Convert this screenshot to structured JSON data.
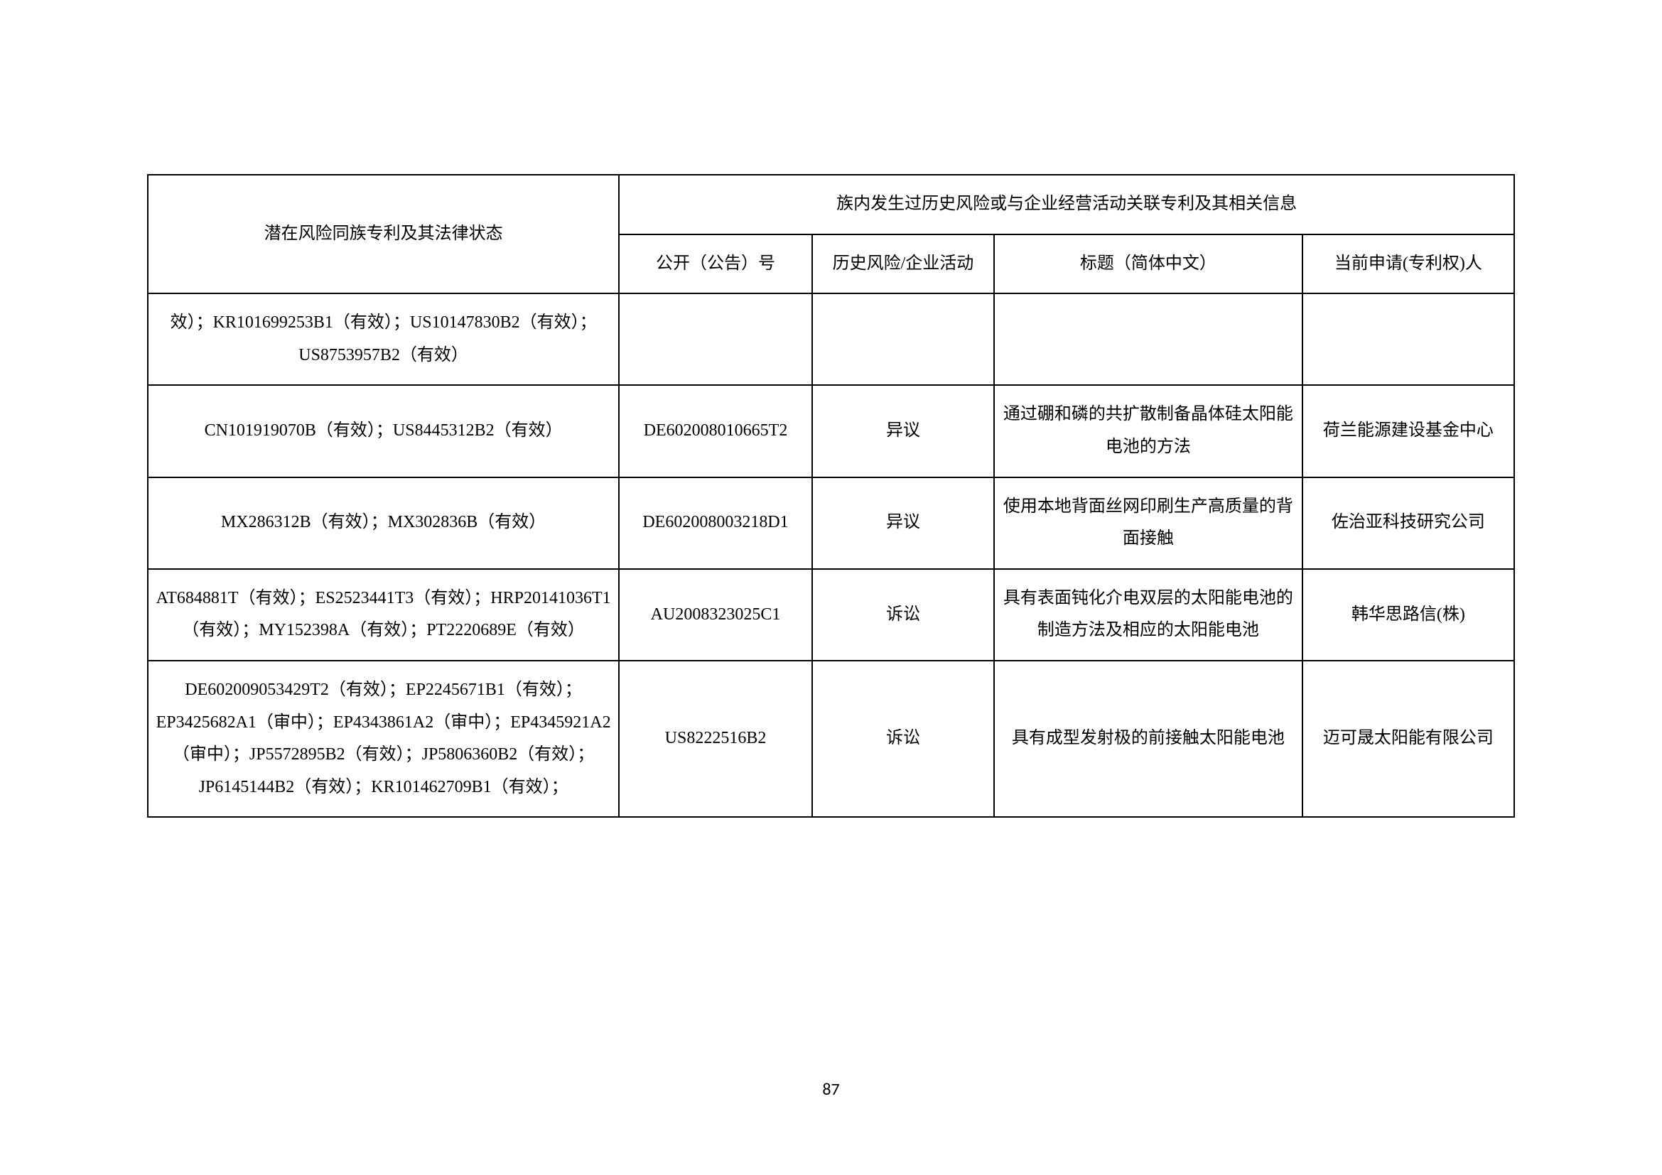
{
  "table": {
    "headers": {
      "col1": "潜在风险同族专利及其法律状态",
      "merged_top": "族内发生过历史风险或与企业经营活动关联专利及其相关信息",
      "col2": "公开（公告）号",
      "col3": "历史风险/企业活动",
      "col4": "标题（简体中文）",
      "col5": "当前申请(专利权)人"
    },
    "rows": [
      {
        "c1": "效）；KR101699253B1（有效）；US10147830B2（有效）；US8753957B2（有效）",
        "c2": "",
        "c3": "",
        "c4": "",
        "c5": ""
      },
      {
        "c1": "CN101919070B（有效）；US8445312B2（有效）",
        "c2": "DE602008010665T2",
        "c3": "异议",
        "c4": "通过硼和磷的共扩散制备晶体硅太阳能电池的方法",
        "c5": "荷兰能源建设基金中心"
      },
      {
        "c1": "MX286312B（有效）；MX302836B（有效）",
        "c2": "DE602008003218D1",
        "c3": "异议",
        "c4": "使用本地背面丝网印刷生产高质量的背面接触",
        "c5": "佐治亚科技研究公司"
      },
      {
        "c1": "AT684881T（有效）；ES2523441T3（有效）；HRP20141036T1（有效）；MY152398A（有效）；PT2220689E（有效）",
        "c2": "AU2008323025C1",
        "c3": "诉讼",
        "c4": "具有表面钝化介电双层的太阳能电池的制造方法及相应的太阳能电池",
        "c5": "韩华思路信(株)"
      },
      {
        "c1": "DE602009053429T2（有效）；EP2245671B1（有效）；EP3425682A1（审中）；EP4343861A2（审中）；EP4345921A2（审中）；JP5572895B2（有效）；JP5806360B2（有效）；JP6145144B2（有效）；KR101462709B1（有效）；",
        "c2": "US8222516B2",
        "c3": "诉讼",
        "c4": "具有成型发射极的前接触太阳能电池",
        "c5": "迈可晟太阳能有限公司"
      }
    ]
  },
  "page_number": "87",
  "colors": {
    "border": "#000000",
    "text": "#000000",
    "background": "#ffffff"
  },
  "fonts": {
    "body_size": 24,
    "page_number_size": 24
  }
}
